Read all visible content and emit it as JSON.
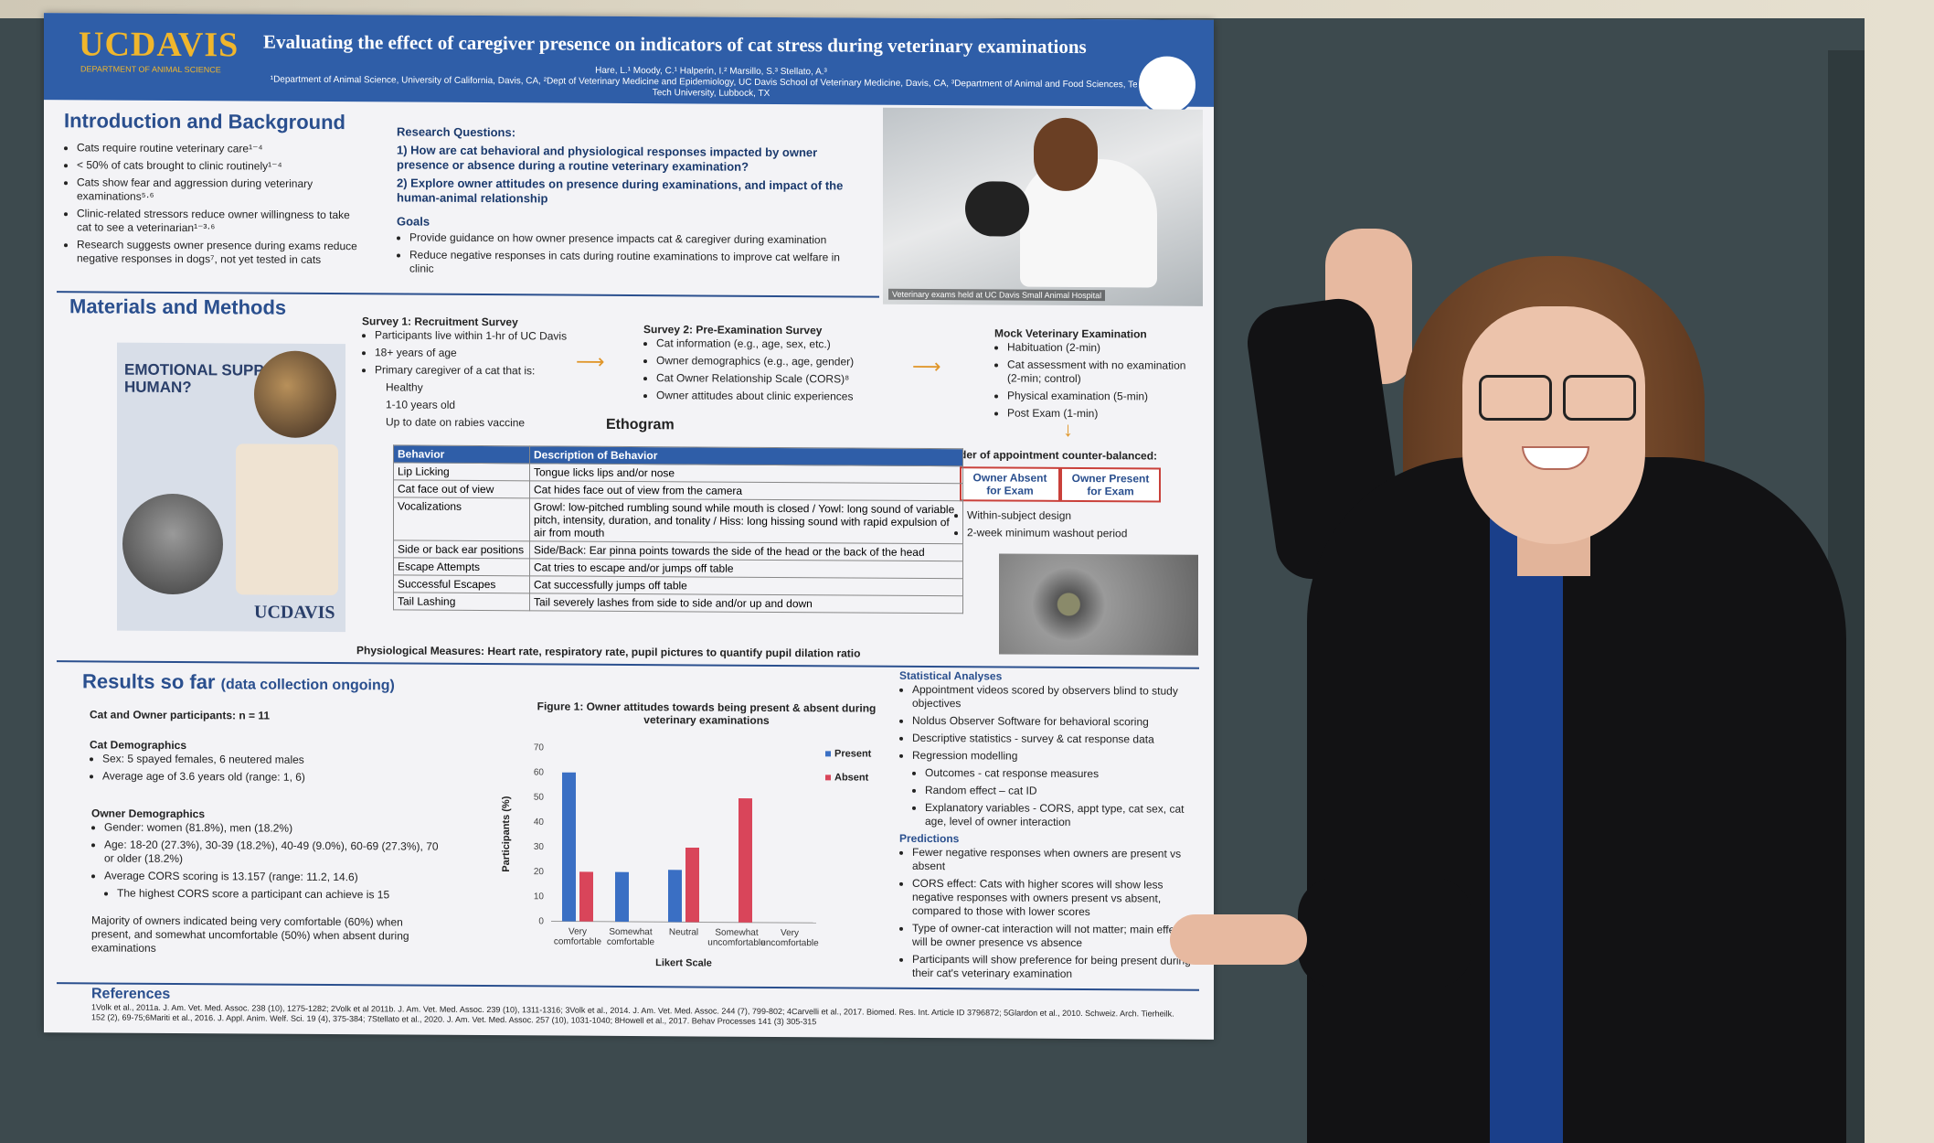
{
  "poster": {
    "logo": "UCDAVIS",
    "logo_sub": "DEPARTMENT OF ANIMAL SCIENCE",
    "title": "Evaluating the effect of caregiver presence on indicators of cat stress during veterinary examinations",
    "authors": "Hare, L.¹ Moody, C.¹ Halperin, I.² Marsillo, S.³ Stellato, A.³",
    "affiliations": "¹Department of Animal Science, University of California, Davis, CA, ²Dept of Veterinary Medicine and Epidemiology, UC Davis School of Veterinary Medicine, Davis, CA, ³Department of Animal and Food Sciences, Texas Tech University, Lubbock, TX",
    "intro": {
      "heading": "Introduction and Background",
      "bullets": [
        "Cats require routine veterinary care¹⁻⁴",
        "< 50% of cats brought to clinic routinely¹⁻⁴",
        "Cats show fear and aggression during veterinary examinations⁵·⁶",
        "Clinic-related stressors reduce owner willingness to take cat to see a veterinarian¹⁻³·⁶",
        "Research suggests owner presence during exams reduce negative responses in dogs⁷, not yet tested in cats"
      ]
    },
    "research_questions": {
      "heading": "Research Questions:",
      "items": [
        "1)   How are cat behavioral and physiological responses impacted by owner presence or absence during a routine veterinary examination?",
        "2)   Explore owner attitudes on presence during examinations, and impact of the human-animal relationship"
      ]
    },
    "goals": {
      "heading": "Goals",
      "items": [
        "Provide guidance on how owner presence impacts cat & caregiver during examination",
        "Reduce negative responses in cats during routine examinations to improve cat welfare in clinic"
      ]
    },
    "photo_caption": "Veterinary exams held at UC Davis Small Animal Hospital",
    "methods": {
      "heading": "Materials and Methods",
      "survey1": {
        "title": "Survey 1: Recruitment Survey",
        "items": [
          "Participants live within 1-hr of UC Davis",
          "18+ years of age",
          "Primary caregiver of a cat that is:",
          "Healthy",
          "1-10 years old",
          "Up to date on rabies vaccine"
        ]
      },
      "survey2": {
        "title": "Survey 2: Pre-Examination Survey",
        "items": [
          "Cat information (e.g., age, sex, etc.)",
          "Owner demographics (e.g., age, gender)",
          "Cat Owner Relationship Scale (CORS)⁸",
          "Owner attitudes about clinic experiences"
        ]
      },
      "mock": {
        "title": "Mock Veterinary Examination",
        "items": [
          "Habituation (2-min)",
          "Cat assessment with no examination (2-min; control)",
          "Physical examination (5-min)",
          "Post Exam (1-min)"
        ]
      },
      "order_title": "Order of appointment counter-balanced:",
      "owner_absent": "Owner Absent for Exam",
      "owner_present": "Owner Present for Exam",
      "design": [
        "Within-subject design",
        "2-week minimum washout period"
      ],
      "flyer_title": "EMOTIONAL SUPPORT HUMAN?",
      "flyer_logo": "UCDAVIS"
    },
    "ethogram": {
      "heading": "Ethogram",
      "columns": [
        "Behavior",
        "Description of Behavior"
      ],
      "rows": [
        [
          "Lip Licking",
          "Tongue licks lips and/or nose"
        ],
        [
          "Cat face out of view",
          "Cat hides face out of view from the camera"
        ],
        [
          "Vocalizations",
          "Growl: low-pitched rumbling sound while mouth is closed / Yowl: long sound of variable pitch, intensity, duration, and tonality / Hiss: long hissing sound with rapid expulsion of air from mouth"
        ],
        [
          "Side or back ear positions",
          "Side/Back: Ear pinna points towards the side of the head or the back of the head"
        ],
        [
          "Escape Attempts",
          "Cat tries to escape and/or jumps off table"
        ],
        [
          "Successful Escapes",
          "Cat successfully jumps off table"
        ],
        [
          "Tail Lashing",
          "Tail severely lashes from side to side and/or up and down"
        ]
      ],
      "physio": "Physiological Measures: Heart rate, respiratory rate, pupil pictures to quantify pupil dilation ratio"
    },
    "results": {
      "heading": "Results so far",
      "heading_note": "(data collection ongoing)",
      "participants": "Cat and Owner participants: n = 11",
      "cat_demo_title": "Cat Demographics",
      "cat_demo": [
        "Sex: 5 spayed females,  6 neutered males",
        "Average age of 3.6 years old (range: 1, 6)"
      ],
      "owner_demo_title": "Owner Demographics",
      "owner_demo": [
        "Gender: women (81.8%), men (18.2%)",
        "Age: 18-20 (27.3%), 30-39 (18.2%), 40-49 (9.0%), 60-69 (27.3%), 70 or older (18.2%)",
        "Average CORS scoring is 13.157 (range: 11.2, 14.6)",
        "The highest CORS score a participant can achieve is 15"
      ],
      "majority": "Majority of owners indicated being very comfortable (60%) when present, and somewhat uncomfortable (50%) when absent during examinations"
    },
    "stats": {
      "heading": "Statistical Analyses",
      "items": [
        "Appointment videos scored by observers blind to study objectives",
        "Noldus Observer Software for behavioral scoring",
        "Descriptive statistics - survey & cat response data",
        "Regression modelling",
        "Outcomes - cat response measures",
        "Random effect – cat ID",
        "Explanatory variables - CORS, appt type, cat sex, cat age, level of owner interaction"
      ],
      "pred_heading": "Predictions",
      "predictions": [
        "Fewer negative responses when owners are present vs absent",
        "CORS effect: Cats with higher scores will show less negative responses with owners present vs absent, compared to those with lower scores",
        "Type of owner-cat interaction will not matter; main effect will be owner presence vs absence",
        "Participants will show preference for being present during their cat's veterinary examination"
      ]
    },
    "references": {
      "heading": "References",
      "text": "1Volk et al., 2011a. J. Am. Vet. Med. Assoc. 238 (10), 1275-1282; 2Volk et al 2011b. J. Am. Vet. Med. Assoc. 239 (10), 1311-1316; 3Volk et al., 2014. J. Am. Vet. Med. Assoc. 244 (7), 799-802; 4Carvelli et al., 2017. Biomed. Res. Int. Article ID 3796872; 5Glardon et al., 2010. Schweiz. Arch. Tierheilk. 152 (2), 69-75;6Mariti et al., 2016. J. Appl. Anim. Welf. Sci. 19 (4), 375-384; 7Stellato et al., 2020. J. Am. Vet. Med. Assoc. 257 (10), 1031-1040; 8Howell et al., 2017. Behav Processes 141 (3) 305-315"
    }
  },
  "chart_data": {
    "type": "bar",
    "title": "Figure 1: Owner attitudes towards being present & absent during veterinary examinations",
    "xlabel": "Likert Scale",
    "ylabel": "Participants (%)",
    "ylim": [
      0,
      70
    ],
    "yticks": [
      0,
      10,
      20,
      30,
      40,
      50,
      60,
      70
    ],
    "categories": [
      "Very comfortable",
      "Somewhat comfortable",
      "Neutral",
      "Somewhat uncomfortable",
      "Very uncomfortable"
    ],
    "series": [
      {
        "name": "Present",
        "color": "#3a6fc4",
        "values": [
          60,
          20,
          21,
          0,
          0
        ]
      },
      {
        "name": "Absent",
        "color": "#d9455a",
        "values": [
          20,
          0,
          30,
          50,
          0
        ]
      }
    ],
    "legend": "top-right"
  }
}
